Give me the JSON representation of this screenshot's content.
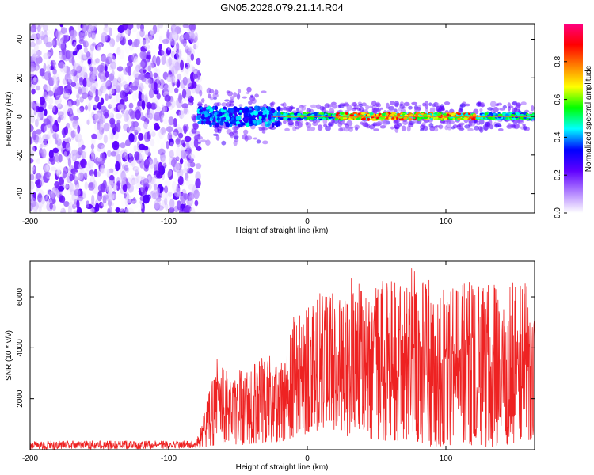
{
  "title": "GN05.2026.079.21.14.R04",
  "chart_data": [
    {
      "type": "heatmap",
      "id": "spectrogram",
      "xlabel": "Height of straight line (km)",
      "ylabel": "Frequency (Hz)",
      "xlim": [
        -200,
        164
      ],
      "ylim": [
        -50,
        48
      ],
      "xticks": [
        -200,
        -100,
        0,
        100
      ],
      "xtick_labels": [
        "-200",
        "-100",
        "0",
        "100"
      ],
      "yticks": [
        -40,
        -20,
        0,
        20,
        40
      ],
      "ytick_labels": [
        "-40",
        "-20",
        "0",
        "20",
        "40"
      ],
      "signal_onset_km": -82,
      "carrier_frequency_hz": 0,
      "colorbar": {
        "label": "Normalized spectral amplitude",
        "range": [
          0,
          1
        ],
        "ticks": [
          0.0,
          0.2,
          0.4,
          0.6,
          0.8
        ],
        "tick_labels": [
          "0.0",
          "0.2",
          "0.4",
          "0.6",
          "0.8"
        ],
        "colors": [
          "#ffffff",
          "#b080ff",
          "#6000ff",
          "#0000ff",
          "#00ffff",
          "#00ff00",
          "#ffff00",
          "#ff8000",
          "#ff0000",
          "#ff0080"
        ]
      }
    },
    {
      "type": "line",
      "id": "snr",
      "xlabel": "Height of straight line (km)",
      "ylabel": "SNR (10 * v/v)",
      "xlim": [
        -200,
        164
      ],
      "ylim": [
        0,
        7400
      ],
      "xticks": [
        -200,
        -100,
        0,
        100
      ],
      "xtick_labels": [
        "-200",
        "-100",
        "0",
        "100"
      ],
      "yticks": [
        2000,
        4000,
        6000
      ],
      "ytick_labels": [
        "2000",
        "4000",
        "6000"
      ],
      "color": "#ee2222",
      "envelope": {
        "x": [
          -200,
          -80,
          -75,
          -65,
          -55,
          -45,
          -30,
          -20,
          -10,
          0,
          10,
          20,
          30,
          40,
          50,
          60,
          70,
          76,
          80,
          90,
          100,
          110,
          120,
          130,
          136,
          145,
          155,
          164
        ],
        "min": [
          0,
          50,
          100,
          200,
          200,
          200,
          300,
          300,
          500,
          600,
          800,
          700,
          500,
          400,
          300,
          400,
          300,
          200,
          200,
          100,
          150,
          100,
          200,
          100,
          100,
          200,
          400,
          300
        ],
        "max": [
          350,
          350,
          1300,
          3600,
          3000,
          3200,
          3800,
          3500,
          5200,
          5700,
          6300,
          6100,
          6900,
          6800,
          6600,
          6700,
          6800,
          7300,
          6500,
          6800,
          6400,
          6500,
          6800,
          6500,
          7200,
          6600,
          6800,
          6000
        ]
      }
    }
  ]
}
